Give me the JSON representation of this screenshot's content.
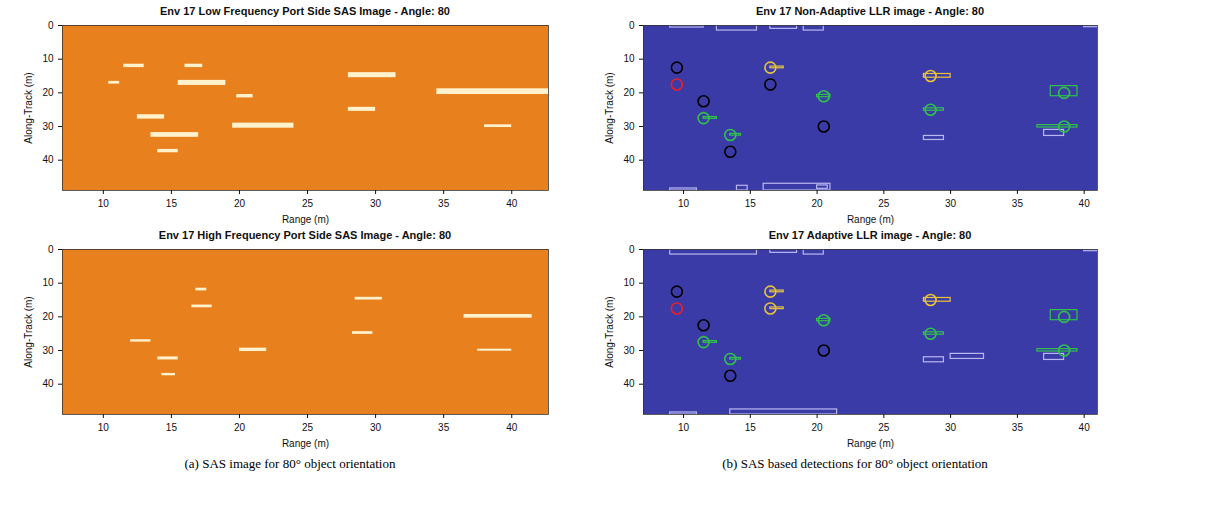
{
  "chart_data": [
    {
      "type": "image",
      "title": "Env 17 Low Frequency Port Side SAS Image - Angle: 80",
      "xlabel": "Range (m)",
      "ylabel": "Along-Track (m)",
      "xlim": [
        7,
        42.7
      ],
      "ylim": [
        0,
        49
      ],
      "xticks": [
        10,
        15,
        20,
        25,
        30,
        35,
        40
      ],
      "yticks": [
        0,
        10,
        20,
        30,
        40
      ],
      "color": "#e8801e",
      "highlights": [
        {
          "x1": 11.5,
          "x2": 13,
          "y1": 11.5,
          "y2": 12.5
        },
        {
          "x1": 10.4,
          "x2": 11.2,
          "y1": 16.6,
          "y2": 17.4
        },
        {
          "x1": 16,
          "x2": 17.3,
          "y1": 11.5,
          "y2": 12.5
        },
        {
          "x1": 15.5,
          "x2": 19,
          "y1": 16.3,
          "y2": 17.8
        },
        {
          "x1": 12.5,
          "x2": 14.5,
          "y1": 26.5,
          "y2": 27.8
        },
        {
          "x1": 19.8,
          "x2": 21,
          "y1": 20.5,
          "y2": 21.5
        },
        {
          "x1": 19.5,
          "x2": 24,
          "y1": 29,
          "y2": 30.5
        },
        {
          "x1": 13.5,
          "x2": 17,
          "y1": 31.8,
          "y2": 33.2
        },
        {
          "x1": 14,
          "x2": 15.5,
          "y1": 36.8,
          "y2": 37.8
        },
        {
          "x1": 28,
          "x2": 31.5,
          "y1": 14,
          "y2": 15.5
        },
        {
          "x1": 28,
          "x2": 30,
          "y1": 24.3,
          "y2": 25.5
        },
        {
          "x1": 34.5,
          "x2": 42.7,
          "y1": 18.8,
          "y2": 20.5
        },
        {
          "x1": 38,
          "x2": 40,
          "y1": 29.5,
          "y2": 30.3
        }
      ]
    },
    {
      "type": "image",
      "title": "Env 17 High Frequency Port Side SAS Image - Angle: 80",
      "xlabel": "Range (m)",
      "ylabel": "Along-Track (m)",
      "xlim": [
        7,
        42.7
      ],
      "ylim": [
        0,
        49
      ],
      "xticks": [
        10,
        15,
        20,
        25,
        30,
        35,
        40
      ],
      "yticks": [
        0,
        10,
        20,
        30,
        40
      ],
      "color": "#e8801e",
      "highlights": [
        {
          "x1": 16.8,
          "x2": 17.6,
          "y1": 11.5,
          "y2": 12.3
        },
        {
          "x1": 16.5,
          "x2": 18,
          "y1": 16.5,
          "y2": 17.3
        },
        {
          "x1": 12,
          "x2": 13.5,
          "y1": 26.8,
          "y2": 27.5
        },
        {
          "x1": 14,
          "x2": 15.5,
          "y1": 31.9,
          "y2": 32.8
        },
        {
          "x1": 14.3,
          "x2": 15.3,
          "y1": 36.8,
          "y2": 37.5
        },
        {
          "x1": 20,
          "x2": 22,
          "y1": 29.3,
          "y2": 30.3
        },
        {
          "x1": 28.5,
          "x2": 30.5,
          "y1": 14.2,
          "y2": 15
        },
        {
          "x1": 28.3,
          "x2": 29.8,
          "y1": 24.4,
          "y2": 25.2
        },
        {
          "x1": 36.5,
          "x2": 41.5,
          "y1": 19.3,
          "y2": 20.4
        },
        {
          "x1": 37.5,
          "x2": 40,
          "y1": 29.6,
          "y2": 30.2
        }
      ]
    },
    {
      "type": "scatter",
      "title": "Env 17 Non-Adaptive LLR image - Angle: 80",
      "xlabel": "Range (m)",
      "ylabel": "Along-Track (m)",
      "xlim": [
        7,
        41
      ],
      "ylim": [
        0,
        49
      ],
      "xticks": [
        10,
        15,
        20,
        25,
        30,
        35,
        40
      ],
      "yticks": [
        0,
        10,
        20,
        30,
        40
      ],
      "color": "#3b3ba8",
      "boxes": [
        {
          "x1": 9,
          "x2": 11.5,
          "y1": 0,
          "y2": 0.6,
          "color": "#b8b8f0"
        },
        {
          "x1": 12.5,
          "x2": 15.5,
          "y1": 0,
          "y2": 1.5,
          "color": "#b8b8f0"
        },
        {
          "x1": 16.5,
          "x2": 18.5,
          "y1": 0,
          "y2": 1,
          "color": "#b8b8f0"
        },
        {
          "x1": 19,
          "x2": 20.5,
          "y1": 0,
          "y2": 1.5,
          "color": "#b8b8f0"
        },
        {
          "x1": 40,
          "x2": 41,
          "y1": 0,
          "y2": 0.5,
          "color": "#b8b8f0"
        },
        {
          "x1": 9,
          "x2": 11,
          "y1": 48.4,
          "y2": 49,
          "color": "#b8b8f0"
        },
        {
          "x1": 14,
          "x2": 14.8,
          "y1": 47.6,
          "y2": 49,
          "color": "#b8b8f0"
        },
        {
          "x1": 16,
          "x2": 21,
          "y1": 47,
          "y2": 49,
          "color": "#b8b8f0"
        },
        {
          "x1": 20,
          "x2": 20.8,
          "y1": 47.5,
          "y2": 48.5,
          "color": "#b8b8f0"
        },
        {
          "x1": 28,
          "x2": 29.5,
          "y1": 32.8,
          "y2": 34,
          "color": "#b8b8f0"
        },
        {
          "x1": 37,
          "x2": 38.5,
          "y1": 31,
          "y2": 32.8,
          "color": "#b8b8f0"
        },
        {
          "x1": 16.5,
          "x2": 17.5,
          "y1": 12.2,
          "y2": 12.7,
          "color": "#e8c33a"
        },
        {
          "x1": 28,
          "x2": 30,
          "y1": 14.4,
          "y2": 15.5,
          "color": "#e8c33a"
        },
        {
          "x1": 11.5,
          "x2": 12.5,
          "y1": 27.2,
          "y2": 27.7,
          "color": "#2fc24a"
        },
        {
          "x1": 13.5,
          "x2": 14.3,
          "y1": 32.2,
          "y2": 32.7,
          "color": "#2fc24a"
        },
        {
          "x1": 20,
          "x2": 21,
          "y1": 20.6,
          "y2": 21.3,
          "color": "#2fc24a"
        },
        {
          "x1": 28,
          "x2": 29.5,
          "y1": 24.6,
          "y2": 25.3,
          "color": "#2fc24a"
        },
        {
          "x1": 37.5,
          "x2": 39.5,
          "y1": 18,
          "y2": 21,
          "color": "#2fc24a"
        },
        {
          "x1": 36.5,
          "x2": 39.5,
          "y1": 29.6,
          "y2": 30.3,
          "color": "#2fc24a"
        }
      ],
      "detections": [
        {
          "x": 9.5,
          "y": 12.5,
          "color": "#000000"
        },
        {
          "x": 11.5,
          "y": 22.5,
          "color": "#000000"
        },
        {
          "x": 16.5,
          "y": 17.5,
          "color": "#000000"
        },
        {
          "x": 13.5,
          "y": 37.5,
          "color": "#000000"
        },
        {
          "x": 20.5,
          "y": 30,
          "color": "#000000"
        },
        {
          "x": 9.5,
          "y": 17.5,
          "color": "#e8202a"
        },
        {
          "x": 16.5,
          "y": 12.5,
          "color": "#e8c33a"
        },
        {
          "x": 28.5,
          "y": 15,
          "color": "#e8c33a"
        },
        {
          "x": 11.5,
          "y": 27.5,
          "color": "#2fc24a"
        },
        {
          "x": 13.5,
          "y": 32.5,
          "color": "#2fc24a"
        },
        {
          "x": 20.5,
          "y": 21,
          "color": "#2fc24a"
        },
        {
          "x": 28.5,
          "y": 25,
          "color": "#2fc24a"
        },
        {
          "x": 38.5,
          "y": 20,
          "color": "#2fc24a"
        },
        {
          "x": 38.5,
          "y": 30,
          "color": "#2fc24a"
        }
      ]
    },
    {
      "type": "scatter",
      "title": "Env 17 Adaptive LLR image - Angle: 80",
      "xlabel": "Range (m)",
      "ylabel": "Along-Track (m)",
      "xlim": [
        7,
        41
      ],
      "ylim": [
        0,
        49
      ],
      "xticks": [
        10,
        15,
        20,
        25,
        30,
        35,
        40
      ],
      "yticks": [
        0,
        10,
        20,
        30,
        40
      ],
      "color": "#3b3ba8",
      "boxes": [
        {
          "x1": 9,
          "x2": 15.5,
          "y1": 0,
          "y2": 1.5,
          "color": "#b8b8f0"
        },
        {
          "x1": 16.5,
          "x2": 18.5,
          "y1": 0,
          "y2": 1,
          "color": "#b8b8f0"
        },
        {
          "x1": 19,
          "x2": 20.5,
          "y1": 0,
          "y2": 1.5,
          "color": "#b8b8f0"
        },
        {
          "x1": 40,
          "x2": 41,
          "y1": 0,
          "y2": 0.5,
          "color": "#b8b8f0"
        },
        {
          "x1": 9,
          "x2": 11,
          "y1": 48.4,
          "y2": 49,
          "color": "#b8b8f0"
        },
        {
          "x1": 13.5,
          "x2": 21.5,
          "y1": 47.5,
          "y2": 49,
          "color": "#b8b8f0"
        },
        {
          "x1": 28,
          "x2": 29.5,
          "y1": 32,
          "y2": 33.5,
          "color": "#b8b8f0"
        },
        {
          "x1": 30,
          "x2": 32.5,
          "y1": 31,
          "y2": 32.5,
          "color": "#b8b8f0"
        },
        {
          "x1": 37,
          "x2": 38.5,
          "y1": 31,
          "y2": 32.8,
          "color": "#b8b8f0"
        },
        {
          "x1": 16.5,
          "x2": 17.5,
          "y1": 12.2,
          "y2": 12.7,
          "color": "#e8c33a"
        },
        {
          "x1": 16.5,
          "x2": 17.5,
          "y1": 17.2,
          "y2": 17.7,
          "color": "#e8c33a"
        },
        {
          "x1": 28,
          "x2": 30,
          "y1": 14.4,
          "y2": 15.5,
          "color": "#e8c33a"
        },
        {
          "x1": 11.5,
          "x2": 12.5,
          "y1": 27.2,
          "y2": 27.7,
          "color": "#2fc24a"
        },
        {
          "x1": 13.5,
          "x2": 14.3,
          "y1": 32.2,
          "y2": 32.7,
          "color": "#2fc24a"
        },
        {
          "x1": 20,
          "x2": 21,
          "y1": 20.6,
          "y2": 21.3,
          "color": "#2fc24a"
        },
        {
          "x1": 28,
          "x2": 29.5,
          "y1": 24.6,
          "y2": 25.3,
          "color": "#2fc24a"
        },
        {
          "x1": 37.5,
          "x2": 39.5,
          "y1": 18,
          "y2": 21,
          "color": "#2fc24a"
        },
        {
          "x1": 36.5,
          "x2": 39.5,
          "y1": 29.6,
          "y2": 30.3,
          "color": "#2fc24a"
        }
      ],
      "detections": [
        {
          "x": 9.5,
          "y": 12.5,
          "color": "#000000"
        },
        {
          "x": 11.5,
          "y": 22.5,
          "color": "#000000"
        },
        {
          "x": 13.5,
          "y": 37.5,
          "color": "#000000"
        },
        {
          "x": 20.5,
          "y": 30,
          "color": "#000000"
        },
        {
          "x": 9.5,
          "y": 17.5,
          "color": "#e8202a"
        },
        {
          "x": 16.5,
          "y": 12.5,
          "color": "#e8c33a"
        },
        {
          "x": 16.5,
          "y": 17.5,
          "color": "#e8c33a"
        },
        {
          "x": 28.5,
          "y": 15,
          "color": "#e8c33a"
        },
        {
          "x": 11.5,
          "y": 27.5,
          "color": "#2fc24a"
        },
        {
          "x": 13.5,
          "y": 32.5,
          "color": "#2fc24a"
        },
        {
          "x": 20.5,
          "y": 21,
          "color": "#2fc24a"
        },
        {
          "x": 28.5,
          "y": 25,
          "color": "#2fc24a"
        },
        {
          "x": 38.5,
          "y": 20,
          "color": "#2fc24a"
        },
        {
          "x": 38.5,
          "y": 30,
          "color": "#2fc24a"
        }
      ]
    }
  ],
  "captions": [
    "(a) SAS image for  80° object orientation",
    "(b) SAS based detections for 80° object orientation"
  ]
}
